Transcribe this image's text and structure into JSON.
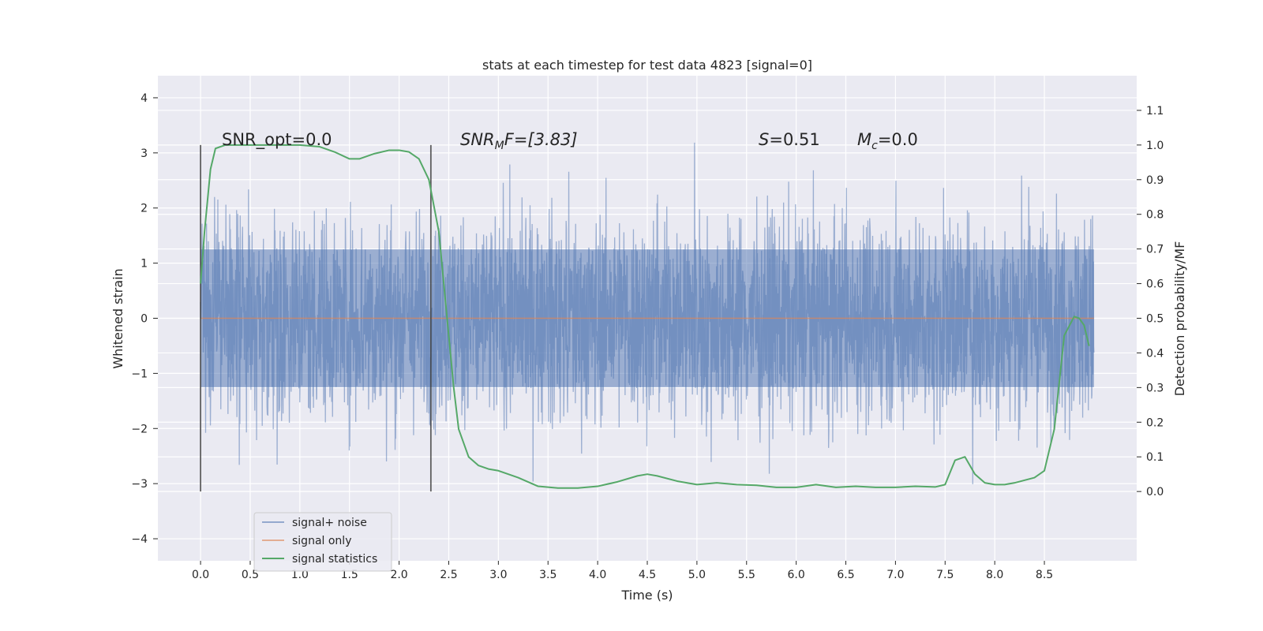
{
  "chart_data": {
    "type": "line",
    "title": "stats at each timestep for test data 4823 [signal=0]",
    "xlabel": "Time (s)",
    "ylabel": "Whitened strain",
    "y2label": "Detection probability/MF",
    "xlim": [
      -0.43,
      9.43
    ],
    "ylim": [
      -4.4,
      4.4
    ],
    "y2lim": [
      -0.2,
      1.2
    ],
    "x_ticks": [
      "0.0",
      "0.5",
      "1.0",
      "1.5",
      "2.0",
      "2.5",
      "3.0",
      "3.5",
      "4.0",
      "4.5",
      "5.0",
      "5.5",
      "6.0",
      "6.5",
      "7.0",
      "7.5",
      "8.0",
      "8.5"
    ],
    "y_ticks": [
      "4",
      "3",
      "2",
      "1",
      "0",
      "−1",
      "−2",
      "−3",
      "−4"
    ],
    "y2_ticks": [
      "1.1",
      "1.0",
      "0.9",
      "0.8",
      "0.7",
      "0.6",
      "0.5",
      "0.4",
      "0.3",
      "0.2",
      "0.1",
      "0.0"
    ],
    "annotations": {
      "snr_opt": "SNR_opt=0.0",
      "snr_mf_sym": "SNR",
      "snr_mf_sub": "M",
      "snr_mf_rest": "F=[3.83]",
      "s_sym": "S",
      "s_val": "=0.51",
      "mc_sym": "M",
      "mc_sub": "c",
      "mc_val": "=0.0"
    },
    "vlines": [
      0.0,
      2.32
    ],
    "legend": {
      "position": "lower-left",
      "entries": [
        "signal+ noise",
        "signal only",
        "signal statistics"
      ]
    },
    "series": [
      {
        "name": "signal+ noise",
        "color": "#4c72b0",
        "alpha": 0.5,
        "x_range": [
          0.0,
          9.0
        ],
        "samples": 3000,
        "envelope": [
          -3.0,
          3.2
        ],
        "core_amplitude": 1.25
      },
      {
        "name": "signal only",
        "color": "#dd8452",
        "x_range": [
          0.0,
          9.0
        ],
        "value": 0.0
      },
      {
        "name": "signal statistics",
        "color": "#55a868",
        "axis": "right",
        "x": [
          0.0,
          0.04,
          0.1,
          0.15,
          0.25,
          0.4,
          0.7,
          1.0,
          1.2,
          1.35,
          1.5,
          1.6,
          1.75,
          1.9,
          2.0,
          2.1,
          2.2,
          2.3,
          2.4,
          2.5,
          2.55,
          2.6,
          2.7,
          2.8,
          2.9,
          3.0,
          3.2,
          3.4,
          3.6,
          3.8,
          4.0,
          4.2,
          4.4,
          4.5,
          4.6,
          4.8,
          5.0,
          5.2,
          5.4,
          5.6,
          5.8,
          6.0,
          6.2,
          6.4,
          6.6,
          6.8,
          7.0,
          7.2,
          7.4,
          7.5,
          7.6,
          7.7,
          7.8,
          7.9,
          8.0,
          8.1,
          8.2,
          8.4,
          8.5,
          8.6,
          8.7,
          8.8,
          8.85,
          8.9,
          8.95
        ],
        "y": [
          0.6,
          0.75,
          0.93,
          0.99,
          1.0,
          1.0,
          1.0,
          1.0,
          0.995,
          0.98,
          0.96,
          0.96,
          0.975,
          0.985,
          0.985,
          0.98,
          0.96,
          0.9,
          0.75,
          0.45,
          0.3,
          0.18,
          0.1,
          0.075,
          0.065,
          0.06,
          0.04,
          0.015,
          0.01,
          0.01,
          0.015,
          0.028,
          0.045,
          0.05,
          0.045,
          0.03,
          0.02,
          0.025,
          0.02,
          0.018,
          0.012,
          0.012,
          0.02,
          0.012,
          0.015,
          0.012,
          0.012,
          0.015,
          0.013,
          0.02,
          0.09,
          0.1,
          0.05,
          0.025,
          0.02,
          0.02,
          0.025,
          0.04,
          0.06,
          0.18,
          0.45,
          0.505,
          0.5,
          0.48,
          0.42
        ]
      }
    ]
  },
  "colors": {
    "plot_background": "#eaeaf2",
    "grid": "#ffffff",
    "text": "#262626",
    "vline": "#3a3a3a"
  }
}
